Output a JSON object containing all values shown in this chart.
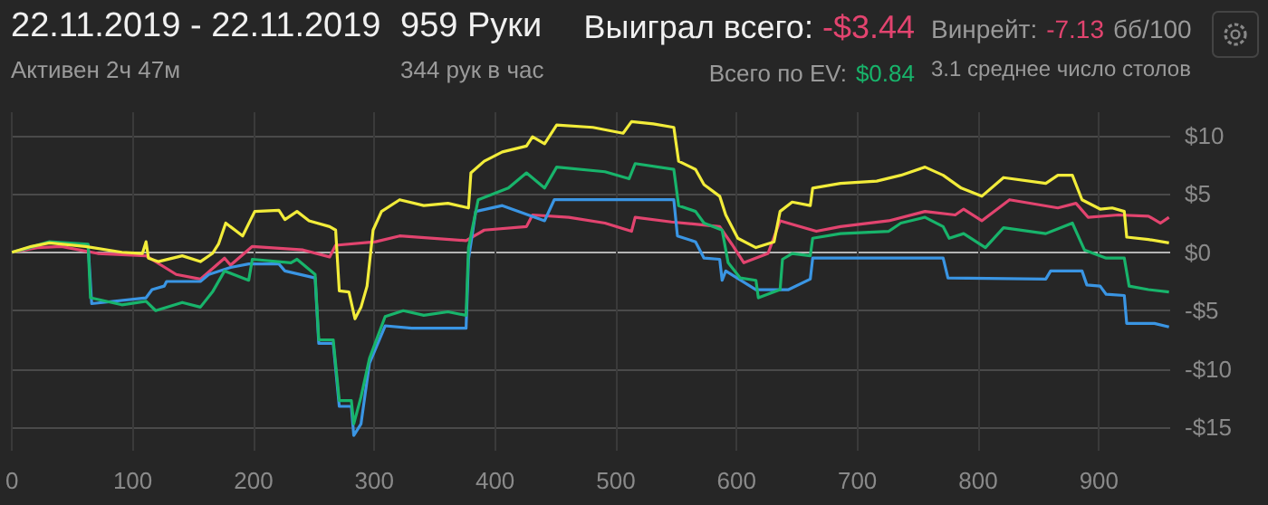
{
  "chart_data": {
    "type": "line",
    "title": "22.11.2019 - 22.11.2019",
    "subtitle": "Активен 2ч 47м",
    "annotations": [
      "959 Руки",
      "344 рук в час",
      "Выиграл всего:",
      "-$3.44",
      "Винрейт:",
      "-7.13",
      "бб/100",
      "Всего по EV:",
      "$0.84",
      "3.1 среднее число столов"
    ],
    "xlim": [
      0,
      959
    ],
    "xticks": [
      0,
      100,
      200,
      300,
      400,
      500,
      600,
      700,
      800,
      900
    ],
    "ylim": [
      -17,
      12
    ],
    "yticks": [
      {
        "value": -15,
        "label": "-$15"
      },
      {
        "value": -10,
        "label": "-$10"
      },
      {
        "value": -5,
        "label": "-$5"
      },
      {
        "value": 0,
        "label": "$0"
      },
      {
        "value": 5,
        "label": "$5"
      },
      {
        "value": 10,
        "label": "$10"
      }
    ],
    "grid": true,
    "series": [
      {
        "color": "#e2446f",
        "x": [
          0,
          21,
          41,
          71,
          111,
          136,
          156,
          176,
          181,
          199,
          241,
          263,
          268,
          301,
          321,
          376,
          391,
          426,
          431,
          461,
          491,
          513,
          516,
          546,
          586,
          596,
          606,
          626,
          636,
          666,
          686,
          726,
          756,
          781,
          788,
          803,
          826,
          866,
          881,
          891,
          916,
          941,
          951,
          958
        ],
        "values": [
          0,
          0.4,
          0.5,
          -0.1,
          -0.3,
          -1.9,
          -2.3,
          -0.5,
          -1.1,
          0.5,
          0.2,
          -0.4,
          0.6,
          0.9,
          1.4,
          1.0,
          1.9,
          2.2,
          3.2,
          3.0,
          2.5,
          1.8,
          3.0,
          2.6,
          2.2,
          0.7,
          -0.9,
          -0.1,
          2.7,
          1.8,
          2.2,
          2.7,
          3.5,
          3.2,
          3.7,
          2.7,
          4.5,
          3.8,
          4.2,
          3.0,
          3.2,
          3.1,
          2.5,
          3.0
        ]
      },
      {
        "color": "#3a95e3",
        "x": [
          63,
          66,
          111,
          116,
          126,
          128,
          156,
          163,
          181,
          196,
          221,
          226,
          251,
          254,
          266,
          271,
          281,
          283,
          289,
          296,
          309,
          331,
          376,
          378,
          384,
          406,
          441,
          449,
          516,
          548,
          551,
          566,
          573,
          586,
          588,
          591,
          616,
          643,
          661,
          663,
          771,
          775,
          856,
          860,
          886,
          890,
          901,
          906,
          921,
          923,
          946,
          958
        ],
        "values": [
          0.7,
          -4.4,
          -3.9,
          -3.2,
          -2.9,
          -2.5,
          -2.5,
          -1.9,
          -1.3,
          -1.0,
          -1.0,
          -1.6,
          -2.2,
          -7.8,
          -7.8,
          -13.2,
          -13.2,
          -15.7,
          -14.7,
          -9.5,
          -6.3,
          -6.5,
          -6.5,
          -0.6,
          3.5,
          4.0,
          2.7,
          4.5,
          4.5,
          4.5,
          1.4,
          0.9,
          -0.5,
          -0.6,
          -2.4,
          -1.6,
          -3.2,
          -3.2,
          -2.3,
          -0.5,
          -0.5,
          -2.2,
          -2.3,
          -1.6,
          -1.6,
          -2.8,
          -2.9,
          -3.6,
          -3.7,
          -6.1,
          -6.1,
          -6.4
        ]
      },
      {
        "color": "#18b46b",
        "x": [
          0,
          11,
          31,
          63,
          65,
          91,
          111,
          119,
          141,
          156,
          166,
          176,
          196,
          199,
          231,
          236,
          251,
          254,
          266,
          271,
          281,
          283,
          289,
          296,
          309,
          324,
          341,
          361,
          376,
          378,
          386,
          411,
          426,
          441,
          451,
          491,
          511,
          516,
          548,
          552,
          566,
          573,
          588,
          593,
          603,
          616,
          618,
          636,
          638,
          646,
          661,
          663,
          686,
          726,
          736,
          756,
          771,
          776,
          788,
          806,
          821,
          856,
          878,
          888,
          906,
          921,
          925,
          941,
          958
        ],
        "values": [
          0,
          0.3,
          0.9,
          0.7,
          -3.9,
          -4.5,
          -4.2,
          -5.0,
          -4.3,
          -4.7,
          -3.4,
          -1.6,
          -2.4,
          -0.6,
          -0.9,
          -0.6,
          -1.9,
          -7.5,
          -7.5,
          -12.7,
          -12.7,
          -14.7,
          -12.4,
          -9.1,
          -5.5,
          -5.0,
          -5.4,
          -5.1,
          -5.4,
          0.4,
          4.5,
          5.5,
          6.8,
          5.5,
          7.3,
          6.9,
          6.3,
          7.6,
          7.1,
          4.0,
          3.5,
          2.5,
          1.9,
          -0.9,
          -2.2,
          -2.4,
          -3.9,
          -3.2,
          -0.6,
          -0.1,
          -0.3,
          1.2,
          1.6,
          1.8,
          2.5,
          3.0,
          2.2,
          1.2,
          1.6,
          0.4,
          2.1,
          1.6,
          2.5,
          0.2,
          -0.5,
          -0.5,
          -2.9,
          -3.2,
          -3.4
        ]
      },
      {
        "color": "#f2ec3a",
        "x": [
          0,
          16,
          31,
          61,
          91,
          108,
          111,
          113,
          121,
          141,
          156,
          166,
          171,
          177,
          191,
          201,
          221,
          226,
          236,
          246,
          263,
          268,
          271,
          279,
          284,
          289,
          294,
          299,
          306,
          321,
          341,
          361,
          378,
          380,
          391,
          406,
          426,
          431,
          441,
          451,
          481,
          506,
          513,
          531,
          548,
          552,
          566,
          573,
          586,
          591,
          601,
          616,
          631,
          636,
          646,
          661,
          663,
          686,
          716,
          736,
          756,
          771,
          786,
          803,
          821,
          856,
          866,
          878,
          886,
          901,
          911,
          921,
          923,
          941,
          958
        ],
        "values": [
          0,
          0.5,
          0.8,
          0.5,
          0,
          -0.1,
          0.9,
          -0.5,
          -0.8,
          -0.3,
          -0.8,
          -0.1,
          0.7,
          2.5,
          1.4,
          3.5,
          3.6,
          2.8,
          3.5,
          2.7,
          2.2,
          1.9,
          -3.3,
          -3.4,
          -5.7,
          -4.7,
          -2.9,
          1.9,
          3.5,
          4.5,
          4.0,
          4.2,
          3.8,
          6.8,
          7.8,
          8.6,
          9.1,
          9.9,
          9.3,
          10.9,
          10.7,
          10.2,
          11.2,
          11.0,
          10.7,
          7.8,
          7.1,
          5.8,
          4.8,
          3.2,
          1.2,
          0.4,
          0.9,
          3.5,
          4.3,
          4.0,
          5.5,
          5.9,
          6.1,
          6.6,
          7.3,
          6.6,
          5.5,
          4.8,
          6.4,
          5.9,
          6.6,
          6.6,
          4.5,
          3.7,
          3.8,
          3.5,
          1.3,
          1.1,
          0.8
        ]
      }
    ]
  }
}
